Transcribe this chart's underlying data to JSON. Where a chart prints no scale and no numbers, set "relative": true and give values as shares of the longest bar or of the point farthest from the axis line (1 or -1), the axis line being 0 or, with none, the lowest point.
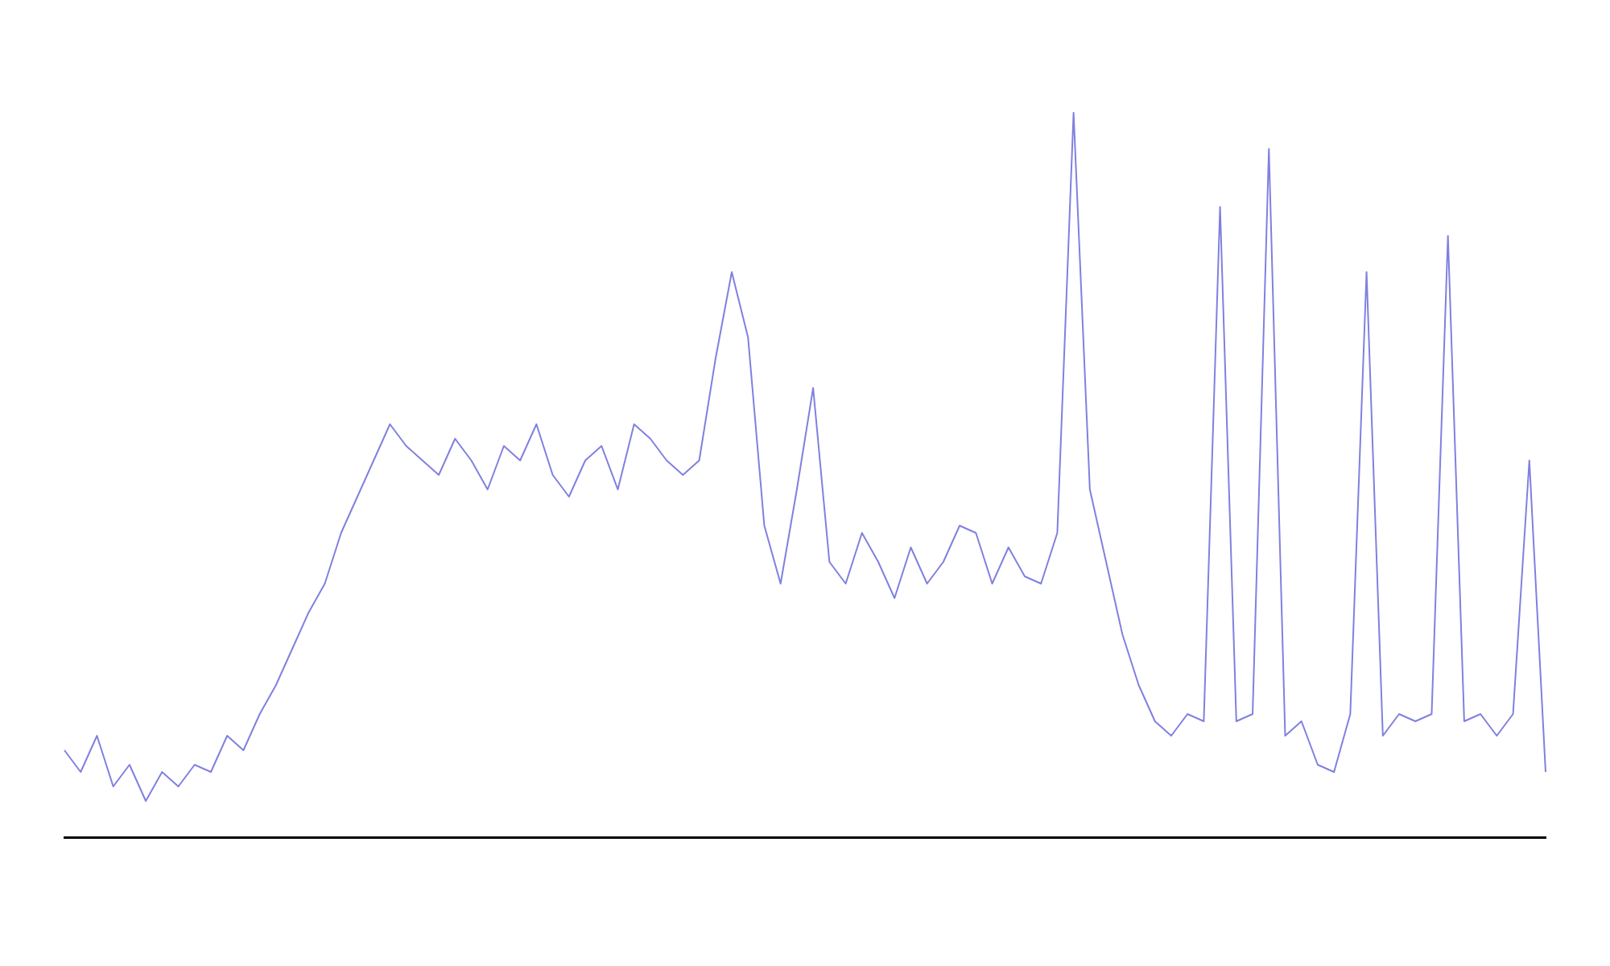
{
  "chart_data": {
    "type": "line",
    "relative": true,
    "grid": false,
    "legend": false,
    "marker": "none",
    "line_style": "solid",
    "categories": [
      null,
      null,
      null,
      null,
      null,
      null,
      null,
      null,
      null,
      null,
      null,
      null,
      null,
      null,
      null,
      null,
      null,
      null,
      null,
      null,
      null,
      null,
      null,
      null,
      null,
      null,
      null,
      null,
      null,
      null,
      null,
      null,
      null,
      null,
      null,
      null,
      null,
      null,
      null,
      null,
      null,
      null,
      null,
      null,
      null,
      null,
      null,
      null,
      null,
      null,
      null,
      null,
      null,
      null,
      null,
      null,
      null,
      null,
      null,
      null,
      null,
      null,
      null,
      null,
      null,
      null,
      null,
      null,
      null,
      null,
      null,
      null,
      null,
      null,
      null,
      null,
      null,
      null,
      null,
      null,
      null,
      null,
      null,
      null,
      null,
      null,
      null,
      null,
      null,
      null,
      null,
      null
    ],
    "series": [
      {
        "color": "#8080e0",
        "values": [
          0.12,
          0.09,
          0.14,
          0.07,
          0.1,
          0.05,
          0.09,
          0.07,
          0.1,
          0.09,
          0.14,
          0.12,
          0.17,
          0.21,
          0.26,
          0.31,
          0.35,
          0.42,
          0.47,
          0.52,
          0.57,
          0.54,
          0.52,
          0.5,
          0.55,
          0.52,
          0.48,
          0.54,
          0.52,
          0.57,
          0.5,
          0.47,
          0.52,
          0.54,
          0.48,
          0.57,
          0.55,
          0.52,
          0.5,
          0.52,
          0.66,
          0.78,
          0.69,
          0.43,
          0.35,
          0.48,
          0.62,
          0.38,
          0.35,
          0.42,
          0.38,
          0.33,
          0.4,
          0.35,
          0.38,
          0.43,
          0.42,
          0.35,
          0.4,
          0.36,
          0.35,
          0.42,
          1,
          0.48,
          0.38,
          0.28,
          0.21,
          0.16,
          0.14,
          0.17,
          0.16,
          0.87,
          0.16,
          0.17,
          0.95,
          0.14,
          0.16,
          0.1,
          0.09,
          0.17,
          0.78,
          0.14,
          0.17,
          0.16,
          0.17,
          0.83,
          0.16,
          0.17,
          0.14,
          0.17,
          0.52,
          0.09
        ]
      }
    ]
  }
}
